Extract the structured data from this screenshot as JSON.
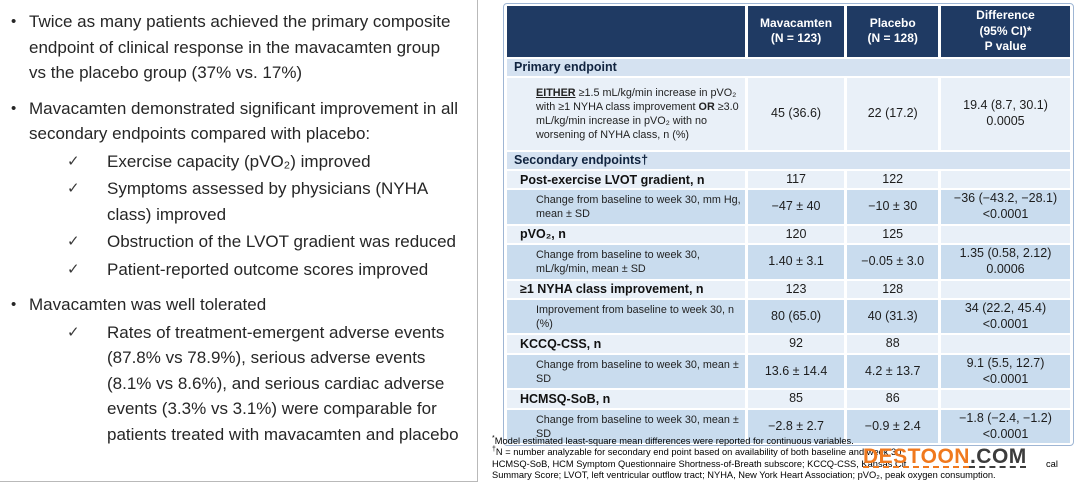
{
  "colors": {
    "header_bg": "#1f3a63",
    "row_section": "#d5e2f1",
    "row_light": "#e9f0f8",
    "row_dark": "#c9dcee",
    "watermark_orange": "#f0791e",
    "watermark_dark": "#3c3c3c"
  },
  "left_panel": {
    "bullet_char": "•",
    "check_char": "✓",
    "bullets": [
      {
        "text": "Twice as many patients achieved the primary composite endpoint of clinical response in the mavacamten group vs the placebo group (37% vs. 17%)",
        "subs": []
      },
      {
        "text": "Mavacamten demonstrated significant improvement in all secondary endpoints compared with placebo:",
        "subs": [
          "Exercise capacity (pVO₂) improved",
          "Symptoms assessed by physicians (NYHA class) improved",
          "Obstruction of the LVOT gradient was reduced",
          "Patient-reported outcome scores improved"
        ]
      },
      {
        "text": "Mavacamten was well tolerated",
        "subs": [
          "Rates of treatment-emergent adverse events (87.8% vs 78.9%), serious adverse events (8.1% vs 8.6%), and serious cardiac adverse events (3.3% vs 3.1%) were comparable for patients treated with mavacamten and placebo"
        ]
      }
    ]
  },
  "table": {
    "columns": [
      {
        "lines": []
      },
      {
        "lines": [
          "Mavacamten",
          "(N = 123)"
        ]
      },
      {
        "lines": [
          "Placebo",
          "(N = 128)"
        ]
      },
      {
        "lines": [
          "Difference",
          "(95% CI)*",
          "P value"
        ]
      }
    ],
    "rows": [
      {
        "type": "section",
        "label": "Primary endpoint"
      },
      {
        "type": "primary",
        "segments": [
          {
            "text": "EITHER",
            "bold": true,
            "underline": true
          },
          {
            "text": " ≥1.5 mL/kg/min increase in pVO₂ with ≥1 NYHA class improvement "
          },
          {
            "text": "OR",
            "bold": true
          },
          {
            "text": " ≥3.0 mL/kg/min increase in pVO₂ with no worsening of NYHA class, n (%)"
          }
        ],
        "mavacamten": "45 (36.6)",
        "placebo": "22 (17.2)",
        "diff": "19.4 (8.7, 30.1)",
        "p": "0.0005"
      },
      {
        "type": "section",
        "label": "Secondary endpoints†"
      },
      {
        "type": "group",
        "label": "Post-exercise LVOT gradient, n",
        "mavacamten": "117",
        "placebo": "122",
        "diff": "",
        "p": ""
      },
      {
        "type": "detail",
        "label": "Change from baseline to week 30, mm Hg, mean ± SD",
        "mavacamten": "−47 ± 40",
        "placebo": "−10 ± 30",
        "diff": "−36 (−43.2, −28.1)",
        "p": "<0.0001"
      },
      {
        "type": "group",
        "label": "pVO₂, n",
        "mavacamten": "120",
        "placebo": "125",
        "diff": "",
        "p": ""
      },
      {
        "type": "detail",
        "label": "Change from baseline to week 30, mL/kg/min, mean ± SD",
        "mavacamten": "1.40 ± 3.1",
        "placebo": "−0.05 ± 3.0",
        "diff": "1.35 (0.58, 2.12)",
        "p": "0.0006"
      },
      {
        "type": "group",
        "label": "≥1 NYHA class improvement, n",
        "mavacamten": "123",
        "placebo": "128",
        "diff": "",
        "p": ""
      },
      {
        "type": "detail",
        "label": "Improvement from baseline to week 30, n (%)",
        "mavacamten": "80 (65.0)",
        "placebo": "40 (31.3)",
        "diff": "34 (22.2, 45.4)",
        "p": "<0.0001"
      },
      {
        "type": "group",
        "label": "KCCQ-CSS, n",
        "mavacamten": "92",
        "placebo": "88",
        "diff": "",
        "p": ""
      },
      {
        "type": "detail",
        "label": "Change from baseline to week 30, mean ± SD",
        "mavacamten": "13.6 ± 14.4",
        "placebo": "4.2 ± 13.7",
        "diff": "9.1 (5.5, 12.7)",
        "p": "<0.0001"
      },
      {
        "type": "group",
        "label": "HCMSQ-SoB, n",
        "mavacamten": "85",
        "placebo": "86",
        "diff": "",
        "p": ""
      },
      {
        "type": "detail",
        "label": "Change from baseline to week 30, mean ± SD",
        "mavacamten": "−2.8 ± 2.7",
        "placebo": "−0.9 ± 2.4",
        "diff": "−1.8 (−2.4, −1.2)",
        "p": "<0.0001"
      }
    ]
  },
  "footnotes": {
    "lines": [
      "*Model estimated least-square mean differences were reported for continuous variables.",
      "†N = number analyzable for secondary end point based on availability of both baseline and week 30",
      "HCMSQ-SoB, HCM Symptom Questionnaire Shortness-of-Breath subscore; KCCQ-CSS, Kansas Cit",
      "Summary Score; LVOT, left ventricular outflow tract; NYHA, New York Heart Association; pVO₂, peak oxygen consumption."
    ],
    "line3_tail": "cal"
  },
  "watermark": {
    "brand": "DESTOON",
    "tld": ".COM"
  }
}
